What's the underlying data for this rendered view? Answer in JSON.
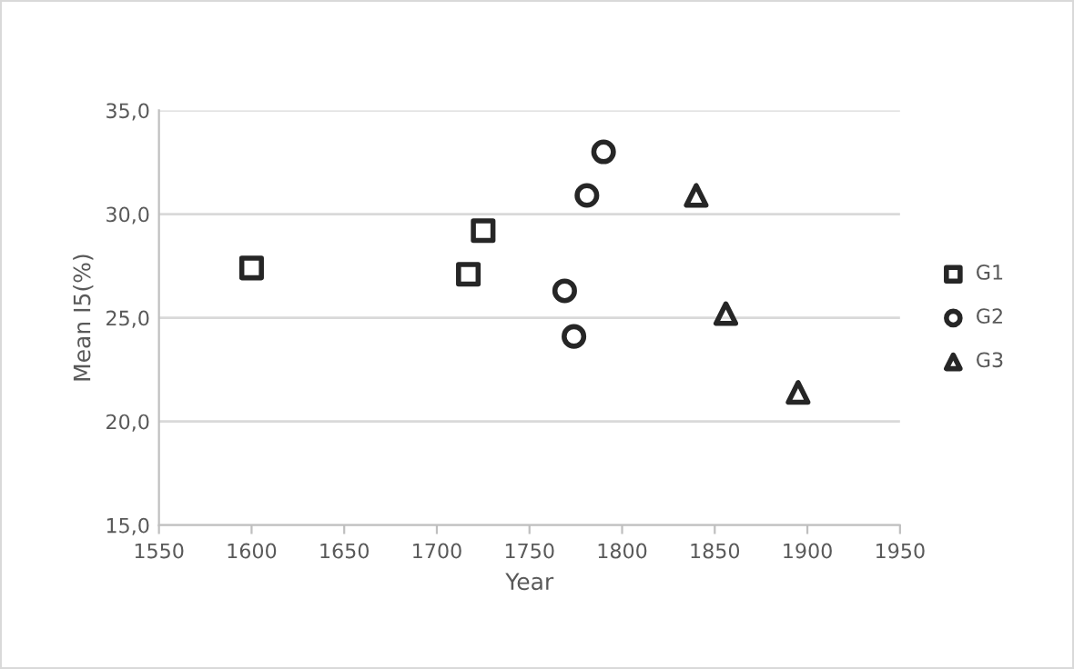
{
  "chart_data": {
    "type": "scatter",
    "xlabel": "Year",
    "ylabel": "Mean I5(%)",
    "xlim": [
      1550,
      1950
    ],
    "xticks": [
      1550,
      1600,
      1650,
      1700,
      1750,
      1800,
      1850,
      1900,
      1950
    ],
    "ylim": [
      15,
      35
    ],
    "yticks": [
      {
        "value": 15,
        "label": "15,0"
      },
      {
        "value": 20,
        "label": "20,0"
      },
      {
        "value": 25,
        "label": "25,0"
      },
      {
        "value": 30,
        "label": "30,0"
      },
      {
        "value": 35,
        "label": "35,0"
      }
    ],
    "grid": "y",
    "legend": "right",
    "series": [
      {
        "name": "G1",
        "color": "#262626",
        "marker": "square",
        "x": [
          1600,
          1717,
          1725
        ],
        "values": [
          27.4,
          27.1,
          29.2
        ]
      },
      {
        "name": "G2",
        "color": "#262626",
        "marker": "circle",
        "x": [
          1769,
          1774,
          1781,
          1790
        ],
        "values": [
          26.3,
          24.1,
          30.9,
          33.0
        ]
      },
      {
        "name": "G3",
        "color": "#262626",
        "marker": "triangle",
        "x": [
          1840,
          1856,
          1895
        ],
        "values": [
          30.9,
          25.2,
          21.4
        ]
      }
    ]
  }
}
